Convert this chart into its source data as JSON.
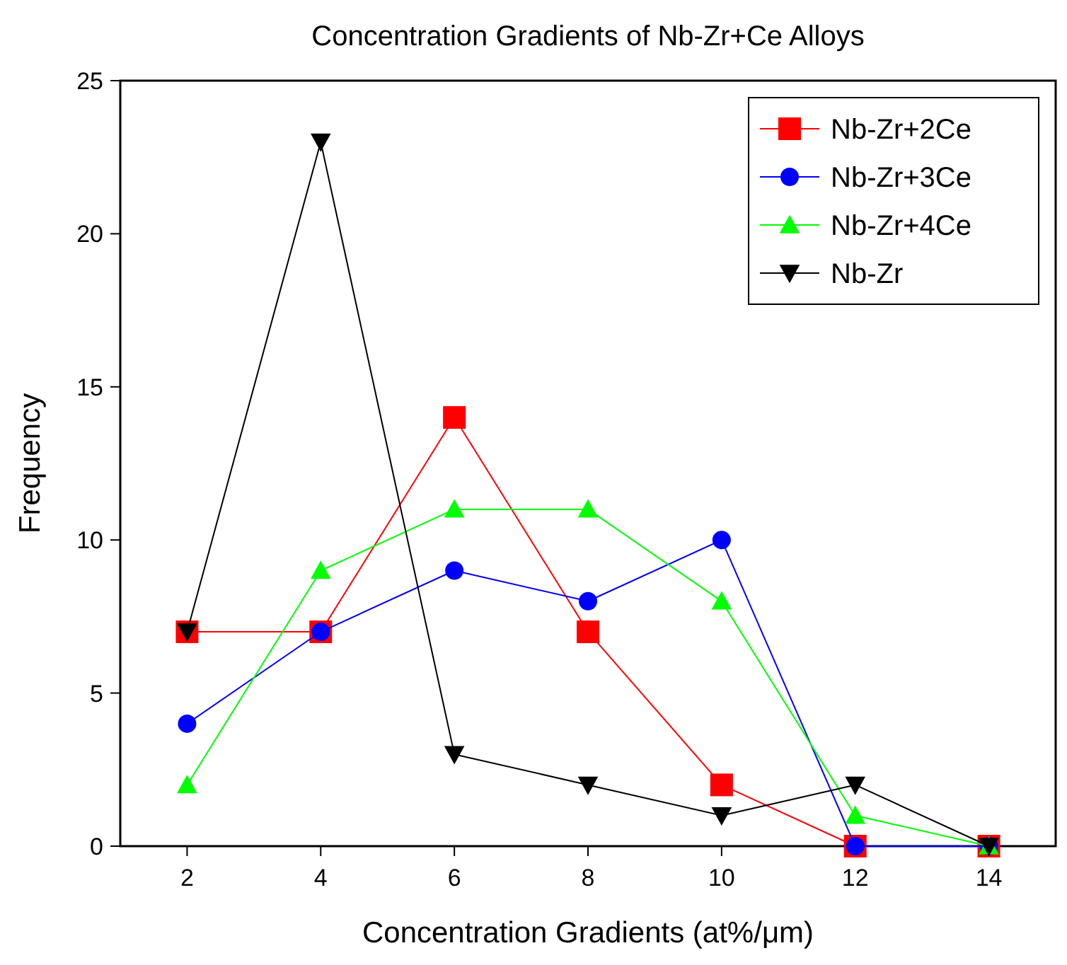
{
  "chart_data": {
    "type": "line",
    "title": "Concentration Gradients of Nb-Zr+Ce Alloys",
    "xlabel": "Concentration Gradients (at%/μm)",
    "ylabel": "Frequency",
    "x": [
      2,
      4,
      6,
      8,
      10,
      12,
      14
    ],
    "xlim": [
      1,
      15
    ],
    "xticks": [
      2,
      4,
      6,
      8,
      10,
      12,
      14
    ],
    "ylim": [
      0,
      25
    ],
    "yticks": [
      0,
      5,
      10,
      15,
      20,
      25
    ],
    "grid": false,
    "legend": "top right",
    "line_style": "solid",
    "series": [
      {
        "name": "Nb-Zr+2Ce",
        "color": "#ff0000",
        "marker": "square",
        "values": [
          7,
          7,
          14,
          7,
          2,
          0,
          0
        ]
      },
      {
        "name": "Nb-Zr+3Ce",
        "color": "#0000ff",
        "marker": "circle",
        "values": [
          4,
          7,
          9,
          8,
          10,
          0,
          0
        ]
      },
      {
        "name": "Nb-Zr+4Ce",
        "color": "#00ff00",
        "marker": "triangle",
        "values": [
          2,
          9,
          11,
          11,
          8,
          1,
          0
        ]
      },
      {
        "name": "Nb-Zr",
        "color": "#000000",
        "marker": "triangle-down",
        "values": [
          7,
          23,
          3,
          2,
          1,
          2,
          0
        ]
      }
    ]
  }
}
